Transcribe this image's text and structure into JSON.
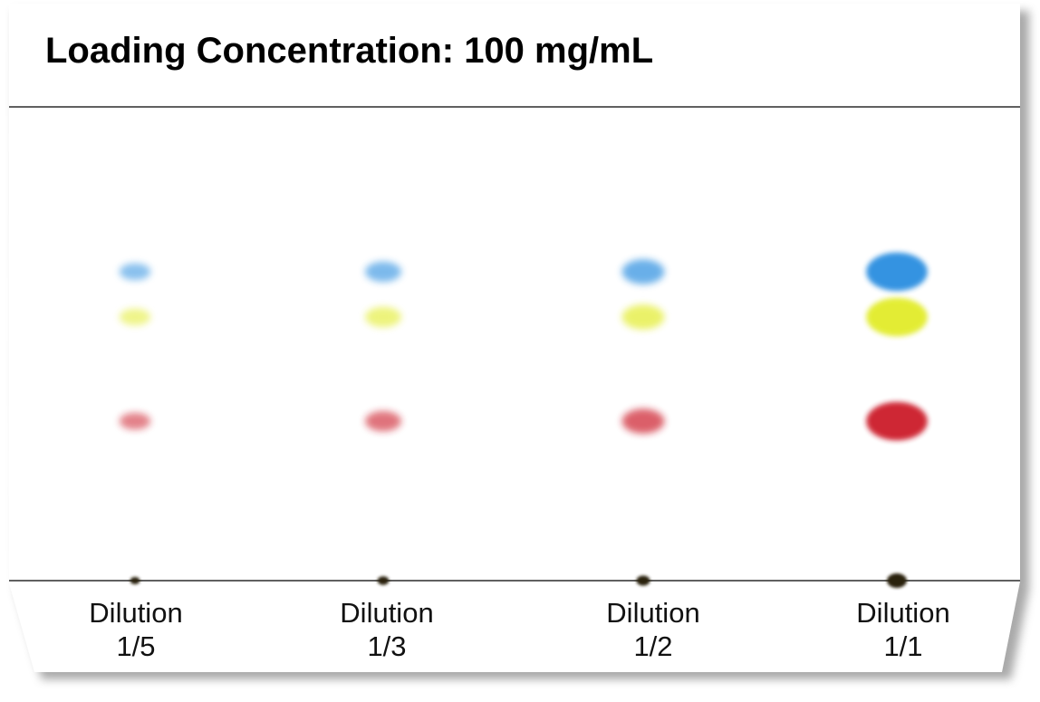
{
  "title": "Loading Concentration: 100 mg/mL",
  "lanes": [
    {
      "line1": "Dilution",
      "line2": "1/5",
      "intensity": 0.2
    },
    {
      "line1": "Dilution",
      "line2": "1/3",
      "intensity": 0.33
    },
    {
      "line1": "Dilution",
      "line2": "1/2",
      "intensity": 0.5
    },
    {
      "line1": "Dilution",
      "line2": "1/1",
      "intensity": 1.0
    }
  ],
  "bands": [
    {
      "name": "blue",
      "color": "#2a8ee0"
    },
    {
      "name": "yellow",
      "color": "#e2ec2a"
    },
    {
      "name": "red",
      "color": "#cc1e2c"
    },
    {
      "name": "origin",
      "color": "#2a2410"
    }
  ],
  "colors": {
    "plate_border": "#000000",
    "shadow": "#8c8c8c"
  }
}
